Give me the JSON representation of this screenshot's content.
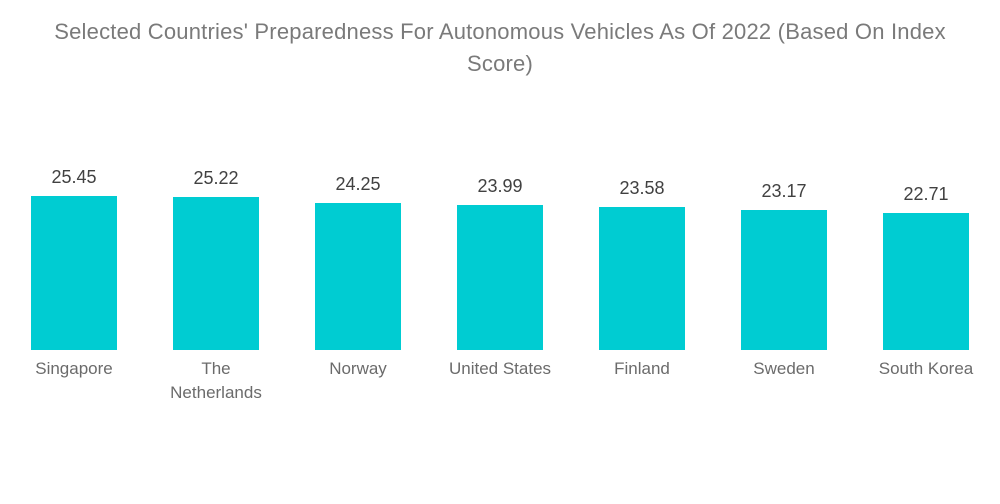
{
  "title": "Selected Countries' Preparedness For Autonomous Vehicles As Of 2022 (Based On Index Score)",
  "chart_data": {
    "type": "bar",
    "title": "Selected Countries' Preparedness For Autonomous Vehicles As Of 2022 (Based On Index Score)",
    "categories": [
      "Singapore",
      "The Netherlands",
      "Norway",
      "United States",
      "Finland",
      "Sweden",
      "South Korea"
    ],
    "values": [
      25.45,
      25.22,
      24.25,
      23.99,
      23.58,
      23.17,
      22.71
    ],
    "value_labels": [
      "25.45",
      "25.22",
      "24.25",
      "23.99",
      "23.58",
      "23.17",
      "22.71"
    ],
    "xlabel": "",
    "ylabel": "",
    "ylim": [
      0,
      26
    ],
    "grid": false,
    "legend_position": "none",
    "data_labels_position": "above-bars",
    "orientation": "vertical",
    "colors": {
      "bar": "#00CCD2",
      "title_text": "#7A7A7A",
      "value_label_text": "#414141",
      "category_label_text": "#6B6B6B",
      "background": "#FFFFFF"
    }
  }
}
